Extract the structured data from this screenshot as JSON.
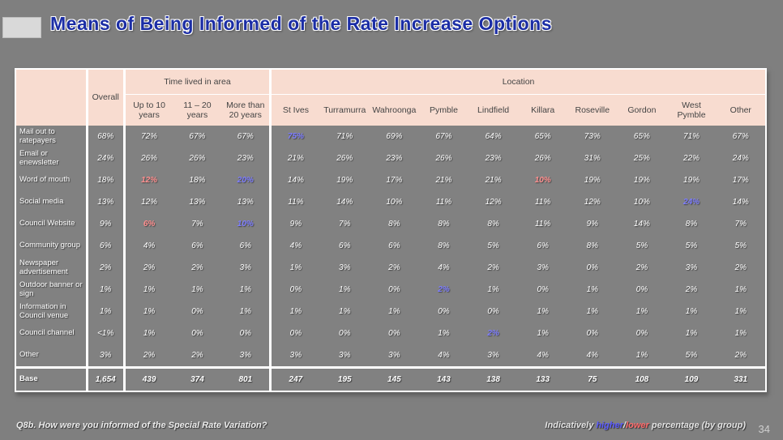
{
  "title": "Means of Being Informed of the Rate Increase Options",
  "table": {
    "corner_label": "",
    "overall_label": "Overall",
    "groups": [
      {
        "label": "Time lived in area",
        "columns": [
          "Up to 10 years",
          "11 – 20 years",
          "More than 20 years"
        ]
      },
      {
        "label": "Location",
        "columns": [
          "St Ives",
          "Turramurra",
          "Wahroonga",
          "Pymble",
          "Lindfield",
          "Killara",
          "Roseville",
          "Gordon",
          "West Pymble",
          "Other"
        ]
      }
    ],
    "rows": [
      {
        "label": "Mail out to ratepayers",
        "values": [
          "68%",
          "72%",
          "67%",
          "67%",
          "75%",
          "71%",
          "69%",
          "67%",
          "64%",
          "65%",
          "73%",
          "65%",
          "71%",
          "67%"
        ]
      },
      {
        "label": "Email or enewsletter",
        "values": [
          "24%",
          "26%",
          "26%",
          "23%",
          "21%",
          "26%",
          "23%",
          "26%",
          "23%",
          "26%",
          "31%",
          "25%",
          "22%",
          "24%"
        ]
      },
      {
        "label": "Word of mouth",
        "values": [
          "18%",
          "12%",
          "18%",
          "20%",
          "14%",
          "19%",
          "17%",
          "21%",
          "21%",
          "10%",
          "19%",
          "19%",
          "19%",
          "17%"
        ]
      },
      {
        "label": "Social media",
        "values": [
          "13%",
          "12%",
          "13%",
          "13%",
          "11%",
          "14%",
          "10%",
          "11%",
          "12%",
          "11%",
          "12%",
          "10%",
          "24%",
          "14%"
        ]
      },
      {
        "label": "Council Website",
        "values": [
          "9%",
          "6%",
          "7%",
          "10%",
          "9%",
          "7%",
          "8%",
          "8%",
          "8%",
          "11%",
          "9%",
          "14%",
          "8%",
          "7%"
        ]
      },
      {
        "label": "Community group",
        "values": [
          "6%",
          "4%",
          "6%",
          "6%",
          "4%",
          "6%",
          "6%",
          "8%",
          "5%",
          "6%",
          "8%",
          "5%",
          "5%",
          "5%"
        ]
      },
      {
        "label": "Newspaper advertisement",
        "values": [
          "2%",
          "2%",
          "2%",
          "3%",
          "1%",
          "3%",
          "2%",
          "4%",
          "2%",
          "3%",
          "0%",
          "2%",
          "3%",
          "2%"
        ]
      },
      {
        "label": "Outdoor banner or sign",
        "values": [
          "1%",
          "1%",
          "1%",
          "1%",
          "0%",
          "1%",
          "0%",
          "2%",
          "1%",
          "0%",
          "1%",
          "0%",
          "2%",
          "1%"
        ]
      },
      {
        "label": "Information in Council venue",
        "values": [
          "1%",
          "1%",
          "0%",
          "1%",
          "1%",
          "1%",
          "1%",
          "0%",
          "0%",
          "1%",
          "1%",
          "1%",
          "1%",
          "1%"
        ]
      },
      {
        "label": "Council channel",
        "values": [
          "<1%",
          "1%",
          "0%",
          "0%",
          "0%",
          "0%",
          "0%",
          "1%",
          "2%",
          "1%",
          "0%",
          "0%",
          "1%",
          "1%"
        ]
      },
      {
        "label": "Other",
        "values": [
          "3%",
          "2%",
          "2%",
          "3%",
          "3%",
          "3%",
          "3%",
          "4%",
          "3%",
          "4%",
          "4%",
          "1%",
          "5%",
          "2%"
        ]
      }
    ],
    "base_row": {
      "label": "Base",
      "values": [
        "1,654",
        "439",
        "374",
        "801",
        "247",
        "195",
        "145",
        "143",
        "138",
        "133",
        "75",
        "108",
        "109",
        "331"
      ]
    },
    "marks": [
      {
        "row": 0,
        "col": 4,
        "type": "higher"
      },
      {
        "row": 2,
        "col": 1,
        "type": "lower"
      },
      {
        "row": 2,
        "col": 3,
        "type": "higher"
      },
      {
        "row": 2,
        "col": 9,
        "type": "lower"
      },
      {
        "row": 3,
        "col": 12,
        "type": "higher"
      },
      {
        "row": 4,
        "col": 1,
        "type": "lower"
      },
      {
        "row": 4,
        "col": 3,
        "type": "higher"
      },
      {
        "row": 7,
        "col": 7,
        "type": "higher"
      },
      {
        "row": 9,
        "col": 8,
        "type": "higher"
      }
    ]
  },
  "footer": {
    "question": "Q8b. How were you informed of the Special Rate Variation?",
    "legend_prefix": "Indicatively ",
    "legend_higher": "higher",
    "legend_slash": "/",
    "legend_lower": "lower",
    "legend_suffix": " percentage (by group)",
    "page_number": "34"
  },
  "colors": {
    "background": "#7f7f7f",
    "title_blue": "#1b2da5",
    "header_peach": "#f8dcd0",
    "higher_blue": "#7d7dff",
    "lower_red": "#ff8f8f"
  }
}
